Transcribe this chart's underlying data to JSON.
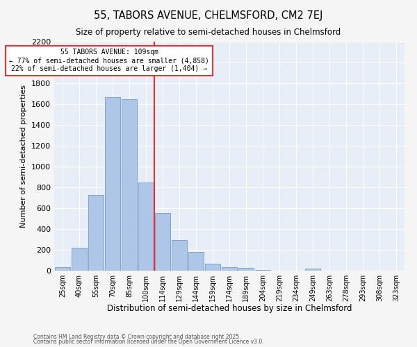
{
  "title": "55, TABORS AVENUE, CHELMSFORD, CM2 7EJ",
  "subtitle": "Size of property relative to semi-detached houses in Chelmsford",
  "xlabel": "Distribution of semi-detached houses by size in Chelmsford",
  "ylabel": "Number of semi-detached properties",
  "bar_color": "#aec6e8",
  "bar_edge_color": "#5b8fc9",
  "bg_color": "#e8eef7",
  "grid_color": "#ffffff",
  "fig_bg_color": "#f5f5f5",
  "categories": [
    "25sqm",
    "40sqm",
    "55sqm",
    "70sqm",
    "85sqm",
    "100sqm",
    "114sqm",
    "129sqm",
    "144sqm",
    "159sqm",
    "174sqm",
    "189sqm",
    "204sqm",
    "219sqm",
    "234sqm",
    "249sqm",
    "263sqm",
    "278sqm",
    "293sqm",
    "308sqm",
    "323sqm"
  ],
  "values": [
    35,
    220,
    730,
    1670,
    1650,
    845,
    555,
    295,
    180,
    65,
    35,
    25,
    10,
    0,
    0,
    20,
    0,
    0,
    0,
    0,
    0
  ],
  "vline_x_index": 5.5,
  "annotation_text_line1": "55 TABORS AVENUE: 109sqm",
  "annotation_text_line2": "← 77% of semi-detached houses are smaller (4,858)",
  "annotation_text_line3": "22% of semi-detached houses are larger (1,404) →",
  "ylim": [
    0,
    2200
  ],
  "yticks": [
    0,
    200,
    400,
    600,
    800,
    1000,
    1200,
    1400,
    1600,
    1800,
    2000,
    2200
  ],
  "footnote1": "Contains HM Land Registry data © Crown copyright and database right 2025.",
  "footnote2": "Contains public sector information licensed under the Open Government Licence v3.0."
}
